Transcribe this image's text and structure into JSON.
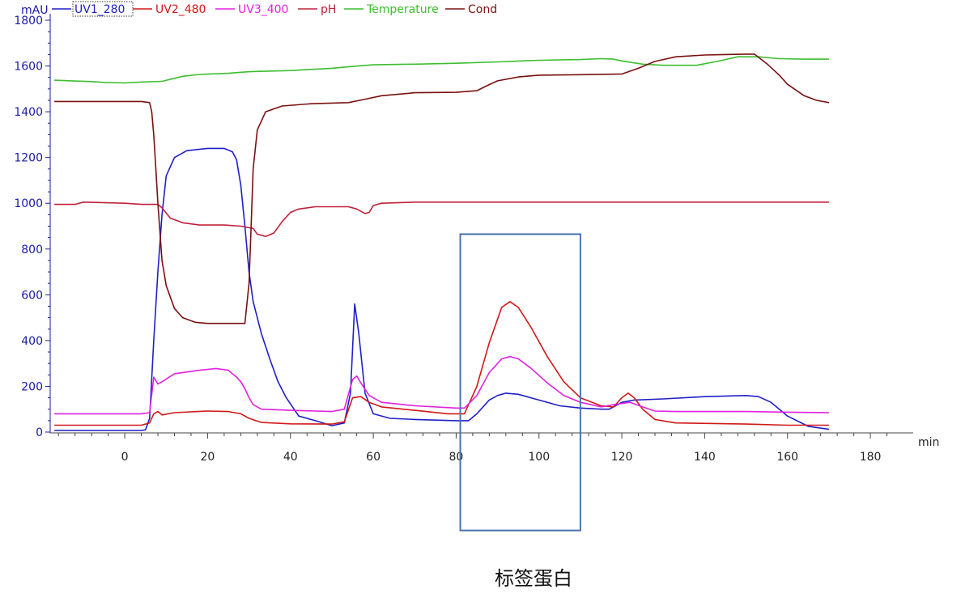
{
  "chart_data": {
    "type": "line",
    "ylabel": "mAU",
    "xlabel": "min",
    "xlim": [
      -18,
      188
    ],
    "ylim": [
      0,
      1800
    ],
    "xticks": [
      0,
      20,
      40,
      60,
      80,
      100,
      120,
      140,
      160,
      180
    ],
    "yticks": [
      0,
      200,
      400,
      600,
      800,
      1000,
      1200,
      1400,
      1600,
      1800
    ],
    "legend_position": "top-left",
    "annotation_text": "标签蛋白",
    "highlight_box_x_range": [
      81,
      110
    ],
    "highlight_box_y_range": [
      -430,
      865
    ],
    "series": [
      {
        "name": "UV1_280",
        "color": "#1f1fc8",
        "points": [
          [
            -17,
            7
          ],
          [
            4,
            7
          ],
          [
            5,
            10
          ],
          [
            6,
            60
          ],
          [
            7,
            400
          ],
          [
            8,
            700
          ],
          [
            9,
            950
          ],
          [
            10,
            1120
          ],
          [
            12,
            1200
          ],
          [
            15,
            1230
          ],
          [
            20,
            1240
          ],
          [
            24,
            1240
          ],
          [
            26,
            1225
          ],
          [
            27,
            1190
          ],
          [
            28,
            1080
          ],
          [
            29,
            900
          ],
          [
            30,
            700
          ],
          [
            31,
            570
          ],
          [
            33,
            430
          ],
          [
            35,
            320
          ],
          [
            37,
            220
          ],
          [
            39,
            150
          ],
          [
            42,
            70
          ],
          [
            46,
            50
          ],
          [
            50,
            28
          ],
          [
            53,
            40
          ],
          [
            54.5,
            170
          ],
          [
            55.5,
            560
          ],
          [
            56.5,
            430
          ],
          [
            58,
            170
          ],
          [
            60,
            80
          ],
          [
            64,
            60
          ],
          [
            70,
            55
          ],
          [
            80,
            50
          ],
          [
            83,
            50
          ],
          [
            85,
            80
          ],
          [
            88,
            140
          ],
          [
            90,
            160
          ],
          [
            92,
            170
          ],
          [
            95,
            165
          ],
          [
            100,
            140
          ],
          [
            105,
            115
          ],
          [
            110,
            105
          ],
          [
            115,
            100
          ],
          [
            117,
            100
          ],
          [
            120,
            130
          ],
          [
            123,
            140
          ],
          [
            130,
            145
          ],
          [
            140,
            155
          ],
          [
            150,
            160
          ],
          [
            153,
            155
          ],
          [
            156,
            130
          ],
          [
            160,
            70
          ],
          [
            165,
            25
          ],
          [
            170,
            12
          ]
        ]
      },
      {
        "name": "UV2_480",
        "color": "#d01818",
        "points": [
          [
            -17,
            30
          ],
          [
            4,
            30
          ],
          [
            6,
            40
          ],
          [
            7,
            80
          ],
          [
            8,
            90
          ],
          [
            9,
            75
          ],
          [
            12,
            85
          ],
          [
            20,
            92
          ],
          [
            25,
            90
          ],
          [
            28,
            80
          ],
          [
            30,
            60
          ],
          [
            33,
            42
          ],
          [
            40,
            36
          ],
          [
            50,
            35
          ],
          [
            53,
            45
          ],
          [
            55,
            150
          ],
          [
            57,
            155
          ],
          [
            59,
            130
          ],
          [
            62,
            110
          ],
          [
            70,
            95
          ],
          [
            78,
            80
          ],
          [
            82,
            80
          ],
          [
            85,
            200
          ],
          [
            88,
            390
          ],
          [
            91,
            545
          ],
          [
            93,
            570
          ],
          [
            95,
            545
          ],
          [
            98,
            460
          ],
          [
            102,
            330
          ],
          [
            106,
            220
          ],
          [
            110,
            150
          ],
          [
            115,
            115
          ],
          [
            118,
            110
          ],
          [
            120,
            150
          ],
          [
            121.5,
            170
          ],
          [
            123,
            150
          ],
          [
            125,
            100
          ],
          [
            128,
            55
          ],
          [
            133,
            40
          ],
          [
            150,
            35
          ],
          [
            160,
            30
          ],
          [
            170,
            30
          ]
        ]
      },
      {
        "name": "UV3_400",
        "color": "#e020e0",
        "points": [
          [
            -17,
            80
          ],
          [
            4,
            80
          ],
          [
            6,
            85
          ],
          [
            7,
            240
          ],
          [
            8,
            210
          ],
          [
            9,
            220
          ],
          [
            12,
            255
          ],
          [
            18,
            270
          ],
          [
            22,
            278
          ],
          [
            25,
            270
          ],
          [
            26,
            255
          ],
          [
            27,
            240
          ],
          [
            28,
            220
          ],
          [
            29,
            190
          ],
          [
            30,
            150
          ],
          [
            31,
            120
          ],
          [
            33,
            100
          ],
          [
            40,
            95
          ],
          [
            50,
            90
          ],
          [
            53,
            100
          ],
          [
            55,
            230
          ],
          [
            56,
            245
          ],
          [
            57,
            215
          ],
          [
            59,
            160
          ],
          [
            62,
            130
          ],
          [
            70,
            115
          ],
          [
            80,
            105
          ],
          [
            82,
            105
          ],
          [
            85,
            160
          ],
          [
            88,
            260
          ],
          [
            91,
            320
          ],
          [
            93,
            330
          ],
          [
            95,
            320
          ],
          [
            98,
            280
          ],
          [
            102,
            215
          ],
          [
            106,
            160
          ],
          [
            110,
            130
          ],
          [
            115,
            110
          ],
          [
            118,
            120
          ],
          [
            122,
            130
          ],
          [
            125,
            110
          ],
          [
            128,
            92
          ],
          [
            133,
            90
          ],
          [
            150,
            90
          ],
          [
            160,
            87
          ],
          [
            170,
            85
          ]
        ]
      },
      {
        "name": "pH",
        "color": "#c0203a",
        "points": [
          [
            -17,
            995
          ],
          [
            -12,
            995
          ],
          [
            -10,
            1005
          ],
          [
            0,
            1000
          ],
          [
            4,
            995
          ],
          [
            8,
            995
          ],
          [
            9,
            980
          ],
          [
            11,
            935
          ],
          [
            14,
            915
          ],
          [
            18,
            905
          ],
          [
            24,
            905
          ],
          [
            28,
            900
          ],
          [
            31,
            890
          ],
          [
            32,
            865
          ],
          [
            34,
            855
          ],
          [
            36,
            870
          ],
          [
            38,
            920
          ],
          [
            40,
            960
          ],
          [
            42,
            975
          ],
          [
            46,
            985
          ],
          [
            50,
            985
          ],
          [
            54,
            985
          ],
          [
            56,
            975
          ],
          [
            58,
            955
          ],
          [
            59,
            960
          ],
          [
            60,
            990
          ],
          [
            62,
            1000
          ],
          [
            70,
            1005
          ],
          [
            100,
            1005
          ],
          [
            170,
            1005
          ]
        ]
      },
      {
        "name": "Temperature",
        "color": "#3cbe2e",
        "points": [
          [
            -17,
            1538
          ],
          [
            -13,
            1535
          ],
          [
            -8,
            1532
          ],
          [
            -5,
            1528
          ],
          [
            0,
            1526
          ],
          [
            4,
            1530
          ],
          [
            9,
            1533
          ],
          [
            14,
            1555
          ],
          [
            18,
            1563
          ],
          [
            25,
            1568
          ],
          [
            30,
            1575
          ],
          [
            40,
            1580
          ],
          [
            50,
            1590
          ],
          [
            55,
            1598
          ],
          [
            60,
            1605
          ],
          [
            70,
            1608
          ],
          [
            80,
            1612
          ],
          [
            90,
            1618
          ],
          [
            100,
            1625
          ],
          [
            110,
            1628
          ],
          [
            115,
            1632
          ],
          [
            118,
            1630
          ],
          [
            120,
            1622
          ],
          [
            125,
            1608
          ],
          [
            130,
            1603
          ],
          [
            138,
            1603
          ],
          [
            143,
            1620
          ],
          [
            148,
            1640
          ],
          [
            153,
            1640
          ],
          [
            158,
            1632
          ],
          [
            164,
            1630
          ],
          [
            170,
            1630
          ]
        ]
      },
      {
        "name": "Cond",
        "color": "#7a1010",
        "points": [
          [
            -17,
            1445
          ],
          [
            4,
            1445
          ],
          [
            6,
            1440
          ],
          [
            6.5,
            1400
          ],
          [
            7,
            1300
          ],
          [
            7.5,
            1150
          ],
          [
            8,
            1000
          ],
          [
            9,
            750
          ],
          [
            10,
            640
          ],
          [
            12,
            540
          ],
          [
            14,
            500
          ],
          [
            17,
            480
          ],
          [
            20,
            475
          ],
          [
            26,
            475
          ],
          [
            29,
            475
          ],
          [
            30,
            650
          ],
          [
            30.5,
            900
          ],
          [
            31,
            1150
          ],
          [
            32,
            1320
          ],
          [
            34,
            1400
          ],
          [
            38,
            1425
          ],
          [
            45,
            1435
          ],
          [
            54,
            1440
          ],
          [
            58,
            1455
          ],
          [
            62,
            1470
          ],
          [
            70,
            1483
          ],
          [
            80,
            1485
          ],
          [
            85,
            1492
          ],
          [
            87,
            1510
          ],
          [
            90,
            1535
          ],
          [
            95,
            1552
          ],
          [
            100,
            1560
          ],
          [
            110,
            1562
          ],
          [
            120,
            1565
          ],
          [
            124,
            1590
          ],
          [
            128,
            1620
          ],
          [
            133,
            1640
          ],
          [
            140,
            1648
          ],
          [
            150,
            1652
          ],
          [
            152,
            1652
          ],
          [
            155,
            1610
          ],
          [
            158,
            1560
          ],
          [
            160,
            1520
          ],
          [
            164,
            1470
          ],
          [
            167,
            1450
          ],
          [
            170,
            1440
          ]
        ]
      }
    ]
  }
}
